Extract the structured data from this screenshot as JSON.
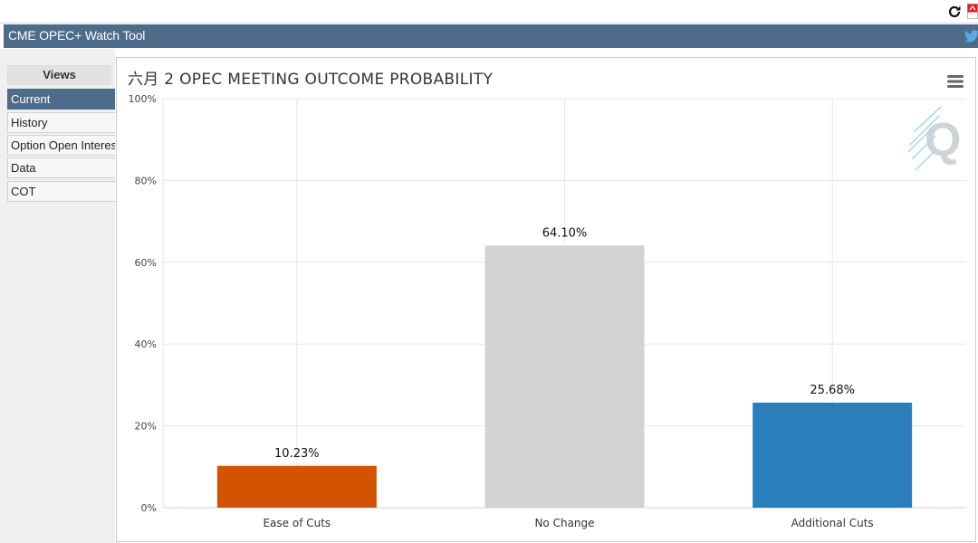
{
  "app": {
    "title": "CME OPEC+ Watch Tool",
    "icons": {
      "reload": "reload-icon",
      "pdf": "pdf-icon",
      "twitter": "twitter-icon",
      "menu": "hamburger-menu-icon",
      "logo": "q-logo-icon"
    }
  },
  "sidebar": {
    "heading": "Views",
    "items": [
      {
        "label": "Current",
        "active": true
      },
      {
        "label": "History",
        "active": false
      },
      {
        "label": "Option Open Interest",
        "active": false
      },
      {
        "label": "Data",
        "active": false
      },
      {
        "label": "COT",
        "active": false
      }
    ]
  },
  "colors": {
    "header": "#4f6b8a",
    "ease_of_cuts": "#d35400",
    "no_change": "#d3d3d3",
    "additional_cuts": "#2a7fba"
  },
  "chart_data": {
    "type": "bar",
    "title": "六月 2 OPEC MEETING OUTCOME PROBABILITY",
    "categories": [
      "Ease of Cuts",
      "No Change",
      "Additional Cuts"
    ],
    "values": [
      10.23,
      64.1,
      25.68
    ],
    "data_labels": [
      "10.23%",
      "64.10%",
      "25.68%"
    ],
    "colors": [
      "#d35400",
      "#d3d3d3",
      "#2a7fba"
    ],
    "y_ticks": [
      "0%",
      "20%",
      "40%",
      "60%",
      "80%",
      "100%"
    ],
    "ylim": [
      0,
      100
    ],
    "grid": true,
    "legend": "none"
  }
}
